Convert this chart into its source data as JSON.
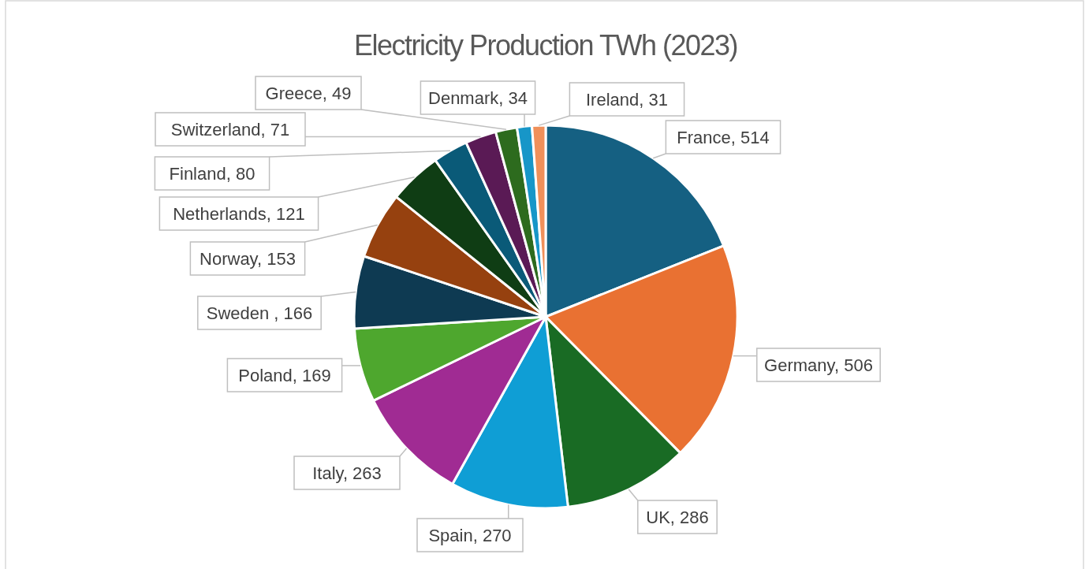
{
  "chart_data": {
    "type": "pie",
    "title": "Electricity Production TWh (2023)",
    "categories": [
      "France",
      "Germany",
      "UK",
      "Spain",
      "Italy",
      "Poland",
      "Sweden ",
      "Norway",
      "Netherlands",
      "Finland",
      "Switzerland",
      "Greece",
      "Denmark",
      "Ireland"
    ],
    "values": [
      514,
      506,
      286,
      270,
      263,
      169,
      166,
      153,
      121,
      80,
      71,
      49,
      34,
      31
    ],
    "colors": [
      "#156082",
      "#e97132",
      "#196b24",
      "#0f9ed5",
      "#a02b93",
      "#4ea72e",
      "#0e3a52",
      "#96410f",
      "#0f3d14",
      "#0a5a78",
      "#5a1a55",
      "#2d6b1e",
      "#1796c8",
      "#f0905a"
    ],
    "value_labels": [
      ", 514",
      ", 506",
      ", 286",
      ", 270",
      ", 263",
      ", 169",
      ", 166",
      ", 153",
      ", 121",
      ", 80",
      ", 71",
      ", 49",
      ", 34",
      ", 31"
    ],
    "legend": false
  }
}
